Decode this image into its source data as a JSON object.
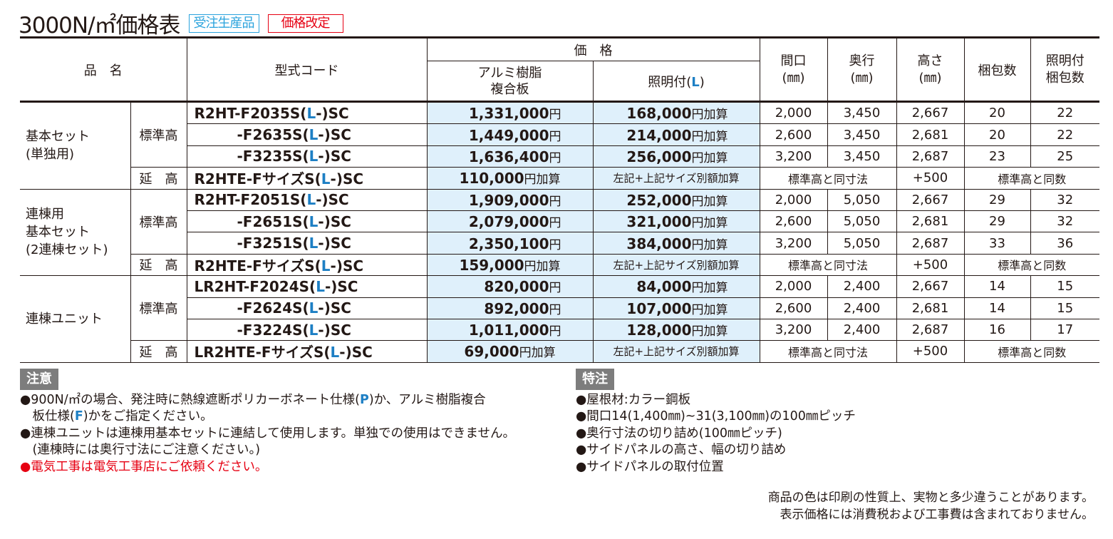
{
  "title": "3000N/㎡価格表",
  "badges": {
    "order": "受注生産品",
    "revision": "価格改定"
  },
  "header": {
    "name": "品　名",
    "code": "型式コード",
    "price": "価　格",
    "alum": "アルミ樹脂\n複合板",
    "light_pre": "照明付(",
    "light_l": "L",
    "light_post": ")",
    "width": "間口\n(㎜)",
    "depth": "奥行\n(㎜)",
    "height": "高さ\n(㎜)",
    "packs": "梱包数",
    "light_packs": "照明付\n梱包数"
  },
  "groups": [
    {
      "name": "基本セット\n(単独用)",
      "rows": [
        {
          "sub": "標準高",
          "code_pre": "R2HT-F2035S(",
          "code_post": "-)SC",
          "price": "1,331,000",
          "price_unit": "円",
          "light": "168,000",
          "light_unit": "円加算",
          "w": "2,000",
          "d": "3,450",
          "h": "2,667",
          "p": "20",
          "lp": "22"
        },
        {
          "code_pre": "-F2635S(",
          "code_post": "-)SC",
          "price": "1,449,000",
          "price_unit": "円",
          "light": "214,000",
          "light_unit": "円加算",
          "w": "2,600",
          "d": "3,450",
          "h": "2,681",
          "p": "20",
          "lp": "22"
        },
        {
          "code_pre": "-F3235S(",
          "code_post": "-)SC",
          "price": "1,636,400",
          "price_unit": "円",
          "light": "256,000",
          "light_unit": "円加算",
          "w": "3,200",
          "d": "3,450",
          "h": "2,687",
          "p": "23",
          "lp": "25"
        },
        {
          "sub": "延　高",
          "ext": true,
          "code_pre": "R2HTE-FサイズS(",
          "code_post": "-)SC",
          "price": "110,000",
          "price_unit": "円加算",
          "light_note": "左記+上記サイズ別額加算",
          "same_size": "標準高と同寸法",
          "h": "+500",
          "same_packs": "標準高と同数"
        }
      ]
    },
    {
      "name": "連棟用\n基本セット\n(2連棟セット)",
      "rows": [
        {
          "sub": "標準高",
          "code_pre": "R2HT-F2051S(",
          "code_post": "-)SC",
          "price": "1,909,000",
          "price_unit": "円",
          "light": "252,000",
          "light_unit": "円加算",
          "w": "2,000",
          "d": "5,050",
          "h": "2,667",
          "p": "29",
          "lp": "32"
        },
        {
          "code_pre": "-F2651S(",
          "code_post": "-)SC",
          "price": "2,079,000",
          "price_unit": "円",
          "light": "321,000",
          "light_unit": "円加算",
          "w": "2,600",
          "d": "5,050",
          "h": "2,681",
          "p": "29",
          "lp": "32"
        },
        {
          "code_pre": "-F3251S(",
          "code_post": "-)SC",
          "price": "2,350,100",
          "price_unit": "円",
          "light": "384,000",
          "light_unit": "円加算",
          "w": "3,200",
          "d": "5,050",
          "h": "2,687",
          "p": "33",
          "lp": "36"
        },
        {
          "sub": "延　高",
          "ext": true,
          "code_pre": "R2HTE-FサイズS(",
          "code_post": "-)SC",
          "price": "159,000",
          "price_unit": "円加算",
          "light_note": "左記+上記サイズ別額加算",
          "same_size": "標準高と同寸法",
          "h": "+500",
          "same_packs": "標準高と同数"
        }
      ]
    },
    {
      "name": "連棟ユニット",
      "rows": [
        {
          "sub": "標準高",
          "code_pre": "LR2HT-F2024S(",
          "code_post": "-)SC",
          "price": "820,000",
          "price_unit": "円",
          "light": "84,000",
          "light_unit": "円加算",
          "w": "2,000",
          "d": "2,400",
          "h": "2,667",
          "p": "14",
          "lp": "15"
        },
        {
          "code_pre": "-F2624S(",
          "code_post": "-)SC",
          "price": "892,000",
          "price_unit": "円",
          "light": "107,000",
          "light_unit": "円加算",
          "w": "2,600",
          "d": "2,400",
          "h": "2,681",
          "p": "14",
          "lp": "15"
        },
        {
          "code_pre": "-F3224S(",
          "code_post": "-)SC",
          "price": "1,011,000",
          "price_unit": "円",
          "light": "128,000",
          "light_unit": "円加算",
          "w": "3,200",
          "d": "2,400",
          "h": "2,687",
          "p": "16",
          "lp": "17"
        },
        {
          "sub": "延　高",
          "ext": true,
          "code_pre": "LR2HTE-FサイズS(",
          "code_post": "-)SC",
          "price": "69,000",
          "price_unit": "円加算",
          "light_note": "左記+上記サイズ別額加算",
          "same_size": "標準高と同寸法",
          "h": "+500",
          "same_packs": "標準高と同数"
        }
      ]
    }
  ],
  "code_l": "L",
  "caution": {
    "title": "注意",
    "l1a": "●900N/㎡の場合、発注時に熱線遮断ポリカーボネート仕様(",
    "l1p": "P",
    "l1b": ")か、アルミ樹脂複合",
    "l2a": "　板仕様(",
    "l2f": "F",
    "l2b": ")かをご指定ください。",
    "l3": "●連棟ユニットは連棟用基本セットに連結して使用します。単独での使用はできません。",
    "l4": "　(連棟時には奥行寸法にご注意ください。)",
    "l5": "●電気工事は電気工事店にご依頼ください。"
  },
  "special": {
    "title": "特注",
    "items": [
      "●屋根材:カラー鋼板",
      "●間口14(1,400㎜)~31(3,100㎜)の100㎜ピッチ",
      "●奥行寸法の切り詰め(100㎜ピッチ)",
      "●サイドパネルの高さ、幅の切り詰め",
      "●サイドパネルの取付位置"
    ]
  },
  "footer": [
    "商品の色は印刷の性質上、実物と多少違うことがあります。",
    "表示価格には消費税および工事費は含まれておりません。"
  ],
  "colors": {
    "accent_blue": "#1d7fc4",
    "price_bg": "#dff0fb",
    "red": "#e60012",
    "badge_blue": "#2aa3dd"
  }
}
